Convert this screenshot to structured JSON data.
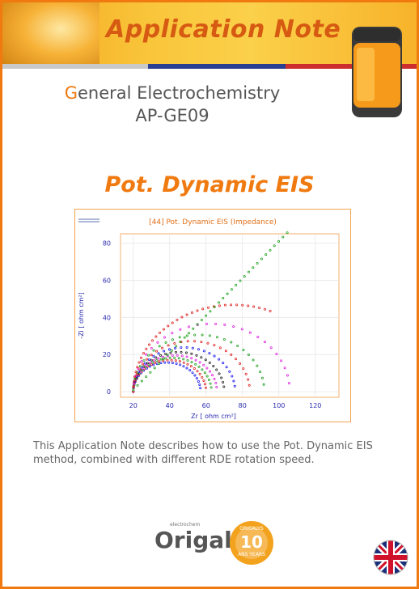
{
  "header": {
    "title": "Application Note",
    "colors": {
      "orange": "#f07a10",
      "gray": "#c9c9c9",
      "blue": "#2a3f8f",
      "red": "#cc2e2e"
    }
  },
  "subtitle": {
    "first_letter": "G",
    "rest": "eneral Electrochemistry",
    "code": "AP-GE09"
  },
  "main_title": "Pot. Dynamic EIS",
  "chart_data": {
    "type": "scatter",
    "title": "[44] Pot. Dynamic EIS (Impedance)",
    "xlabel": "Zr [ ohm cm²]",
    "ylabel": "-Zi [ ohm cm²]",
    "xlim": [
      13,
      133
    ],
    "ylim": [
      -3,
      85
    ],
    "xticks": [
      20,
      40,
      60,
      80,
      100,
      120
    ],
    "yticks": [
      0,
      20,
      40,
      60,
      80
    ],
    "grid": true,
    "series": [
      {
        "color": "#1a1aee",
        "r": 18.5,
        "kind": "arc"
      },
      {
        "color": "#e02020",
        "r": 20,
        "kind": "arc"
      },
      {
        "color": "#20a020",
        "r": 21.5,
        "kind": "arc"
      },
      {
        "color": "#e020e0",
        "r": 23,
        "kind": "arc"
      },
      {
        "color": "#202020",
        "r": 25,
        "kind": "arc"
      },
      {
        "color": "#1a1aee",
        "r": 28,
        "kind": "arc"
      },
      {
        "color": "#e02020",
        "r": 32,
        "kind": "arc"
      },
      {
        "color": "#20a020",
        "r": 36,
        "kind": "arc"
      },
      {
        "color": "#e020e0",
        "r": 43,
        "kind": "arc"
      },
      {
        "color": "#e02020",
        "r": 55,
        "kind": "arc-big"
      },
      {
        "color": "#20a020",
        "r": 70,
        "kind": "line"
      }
    ]
  },
  "description": "This Application Note describes how to use the Pot. Dynamic EIS method, combined with different RDE rotation speed.",
  "footer": {
    "brand": "Origalys",
    "brand_small": "electrochem",
    "badge_top": "ORIGALYS",
    "badge_num": "10",
    "badge_text": "ANS YEARS"
  }
}
